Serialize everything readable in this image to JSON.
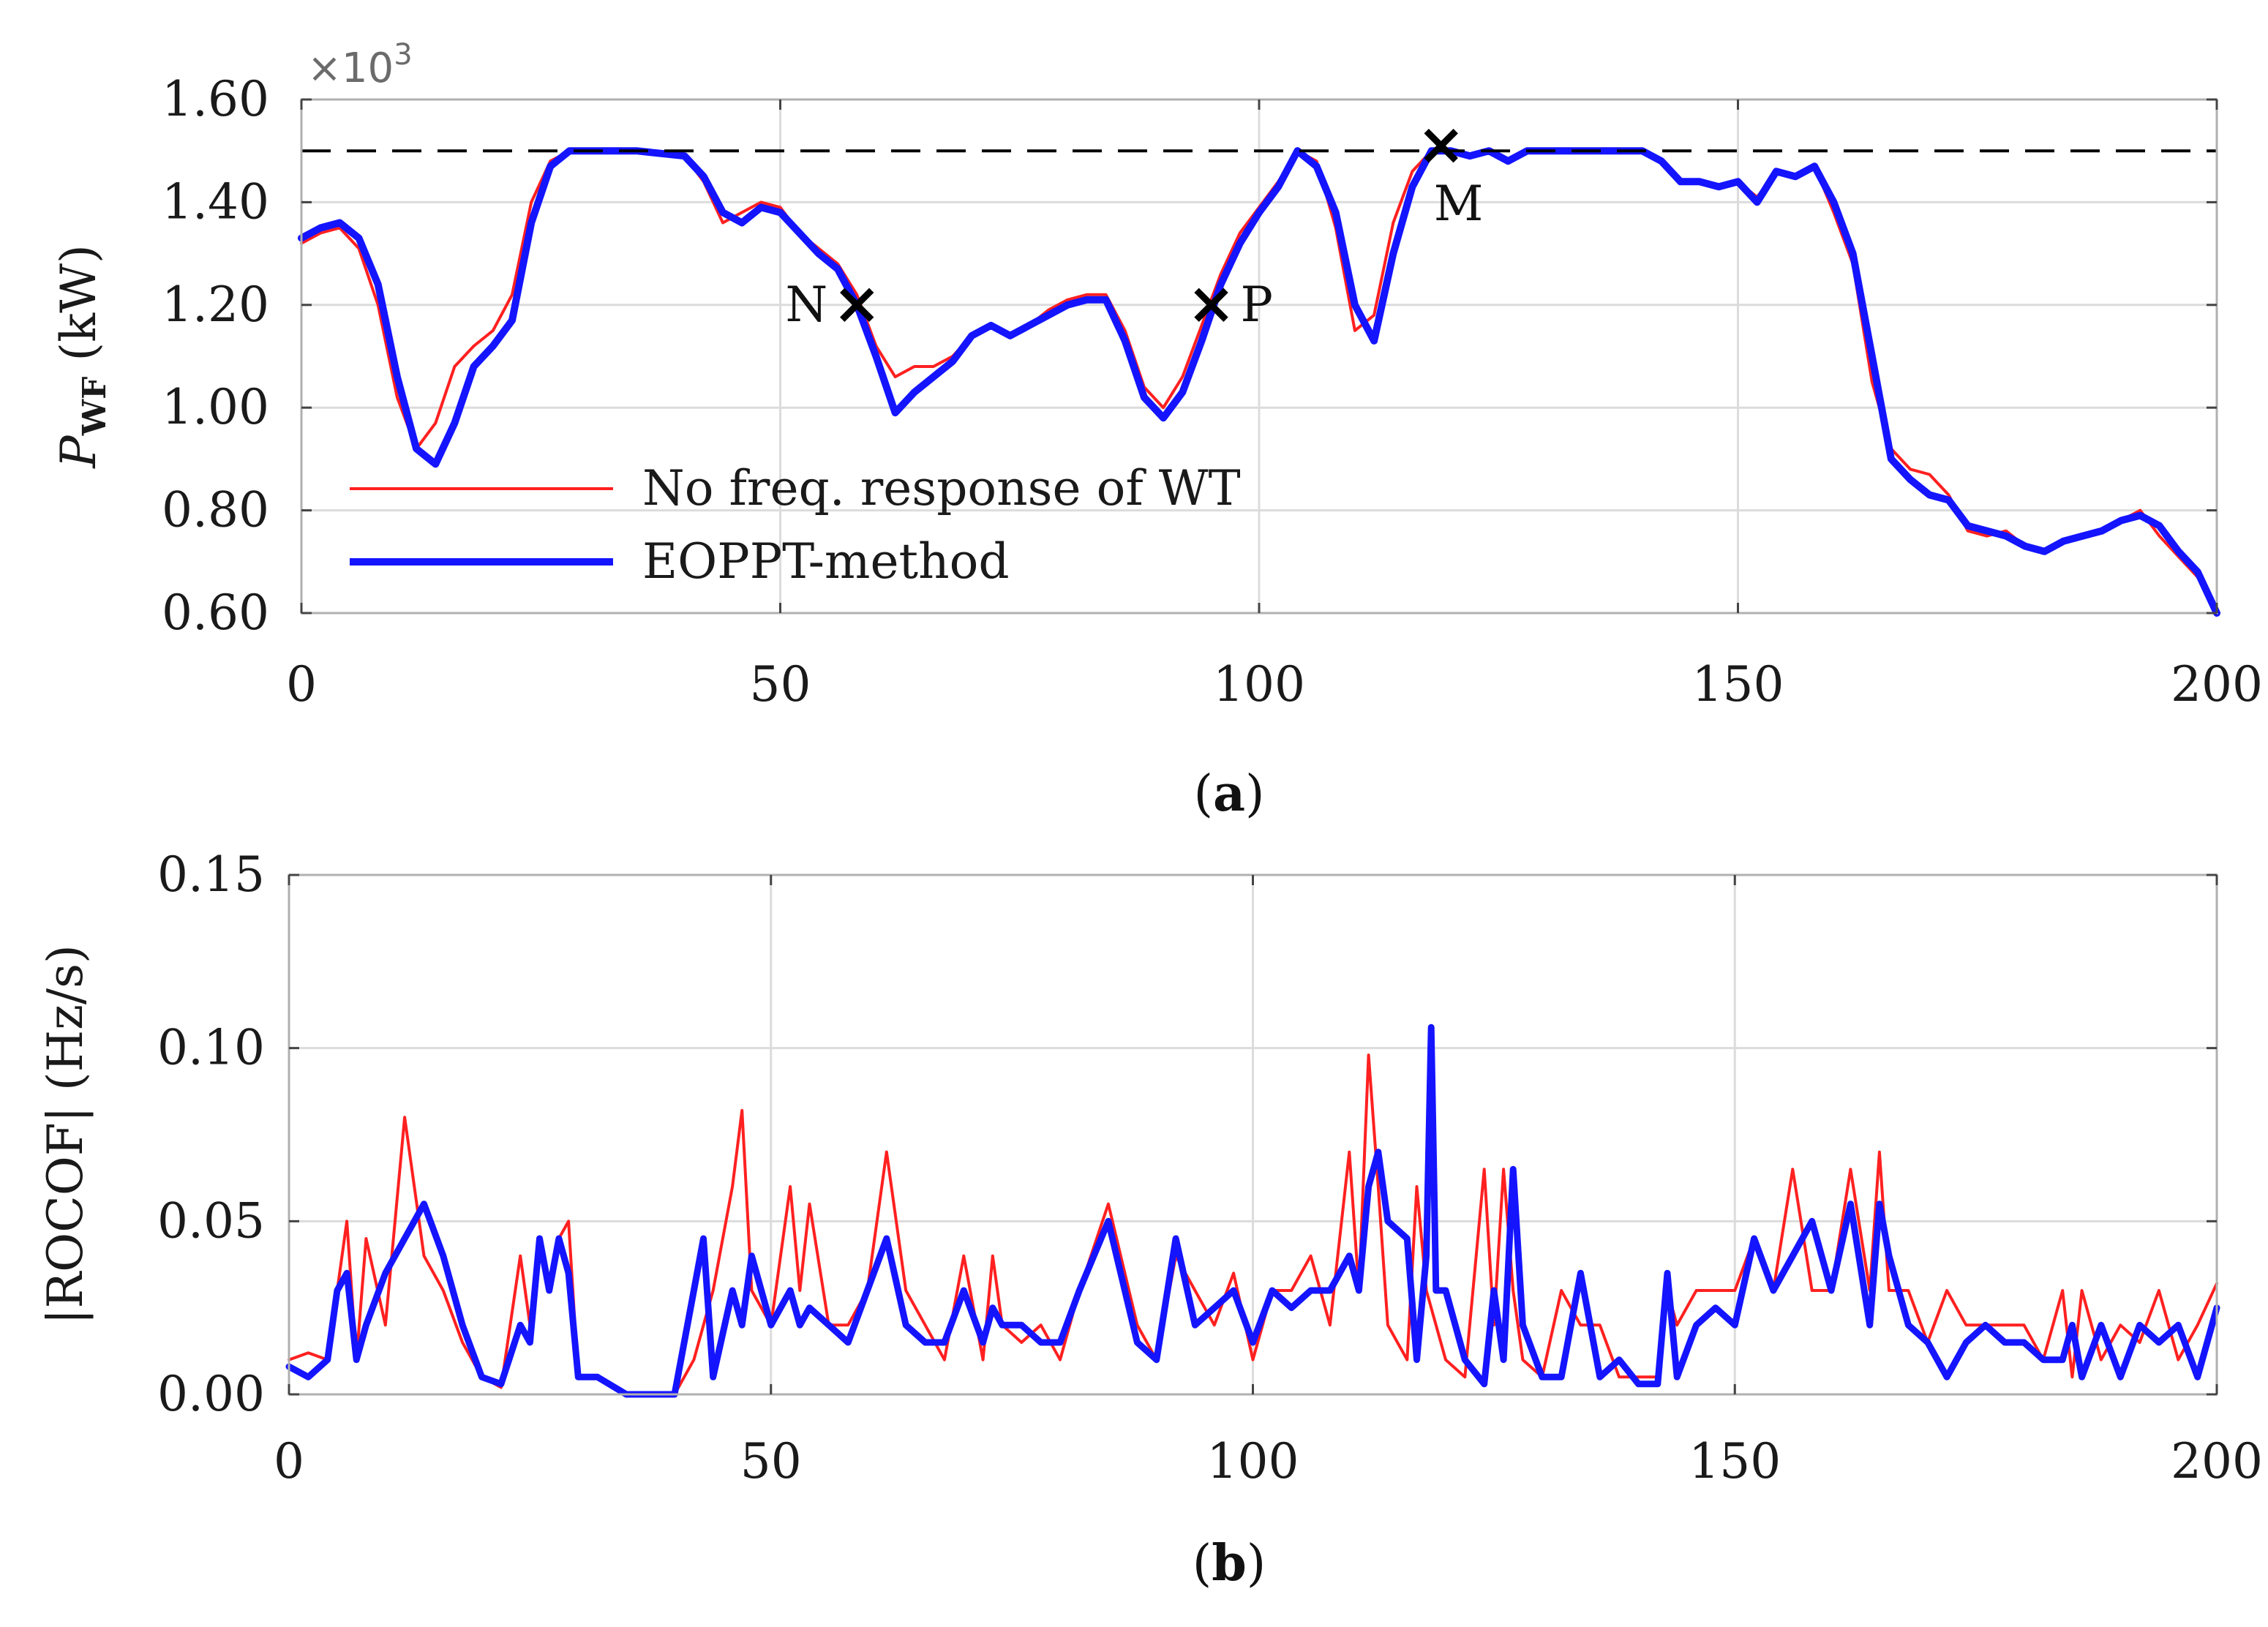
{
  "chart_data": [
    {
      "id": "a",
      "type": "line",
      "caption": "(a)",
      "ylabel_main": "P",
      "ylabel_sub": "WF",
      "ylabel_unit": "(kW)",
      "exponent_base": "×10",
      "exponent_power": "3",
      "xlim": [
        0,
        200
      ],
      "ylim": [
        0.6,
        1.6
      ],
      "x_ticks": [
        "0",
        "50",
        "100",
        "150",
        "200"
      ],
      "y_ticks": [
        "0.60",
        "0.80",
        "1.00",
        "1.20",
        "1.40",
        "1.60"
      ],
      "grid": true,
      "legend_position": "bottom-left",
      "reference_line": {
        "y": 1.5,
        "style": "dashed",
        "color": "#000000"
      },
      "annotations": [
        {
          "label": "N",
          "x": 58,
          "y": 1.2,
          "side": "left"
        },
        {
          "label": "P",
          "x": 95,
          "y": 1.2,
          "side": "right"
        },
        {
          "label": "M",
          "x": 119,
          "y": 1.51,
          "side": "below"
        }
      ],
      "series": [
        {
          "name": "No freq. response of WT",
          "color": "#ff2020",
          "width": 4,
          "x": [
            0,
            2,
            4,
            6,
            8,
            10,
            12,
            14,
            16,
            18,
            20,
            22,
            24,
            26,
            28,
            30,
            35,
            40,
            42,
            44,
            46,
            48,
            50,
            52,
            54,
            56,
            58,
            60,
            62,
            64,
            66,
            68,
            70,
            72,
            74,
            76,
            78,
            80,
            82,
            84,
            86,
            88,
            90,
            92,
            94,
            96,
            98,
            100,
            102,
            104,
            106,
            108,
            110,
            112,
            114,
            116,
            118,
            120,
            122,
            124,
            126,
            128,
            130,
            135,
            140,
            142,
            144,
            146,
            148,
            150,
            152,
            154,
            156,
            158,
            160,
            162,
            164,
            166,
            168,
            170,
            172,
            174,
            176,
            178,
            180,
            182,
            184,
            186,
            188,
            190,
            192,
            194,
            196,
            198,
            200
          ],
          "y": [
            1.32,
            1.34,
            1.35,
            1.31,
            1.2,
            1.02,
            0.92,
            0.97,
            1.08,
            1.12,
            1.15,
            1.22,
            1.4,
            1.48,
            1.5,
            1.5,
            1.5,
            1.49,
            1.44,
            1.36,
            1.38,
            1.4,
            1.39,
            1.34,
            1.31,
            1.28,
            1.22,
            1.12,
            1.06,
            1.08,
            1.08,
            1.1,
            1.14,
            1.16,
            1.14,
            1.16,
            1.19,
            1.21,
            1.22,
            1.22,
            1.15,
            1.04,
            1.0,
            1.06,
            1.16,
            1.26,
            1.34,
            1.39,
            1.44,
            1.5,
            1.48,
            1.35,
            1.15,
            1.18,
            1.36,
            1.46,
            1.5,
            1.5,
            1.49,
            1.5,
            1.48,
            1.5,
            1.5,
            1.5,
            1.5,
            1.48,
            1.44,
            1.44,
            1.43,
            1.44,
            1.41,
            1.46,
            1.45,
            1.47,
            1.38,
            1.28,
            1.05,
            0.92,
            0.88,
            0.87,
            0.83,
            0.76,
            0.75,
            0.76,
            0.73,
            0.72,
            0.74,
            0.75,
            0.76,
            0.78,
            0.8,
            0.75,
            0.71,
            0.67,
            0.6
          ]
        },
        {
          "name": "EOPPT-method",
          "color": "#1414ff",
          "width": 10,
          "x": [
            0,
            2,
            4,
            6,
            8,
            10,
            12,
            14,
            16,
            18,
            20,
            22,
            24,
            26,
            28,
            30,
            35,
            40,
            42,
            44,
            46,
            48,
            50,
            52,
            54,
            56,
            58,
            60,
            62,
            64,
            66,
            68,
            70,
            72,
            74,
            76,
            78,
            80,
            82,
            84,
            86,
            88,
            90,
            92,
            94,
            96,
            98,
            100,
            102,
            104,
            106,
            108,
            110,
            112,
            114,
            116,
            118,
            120,
            122,
            124,
            126,
            128,
            130,
            135,
            140,
            142,
            144,
            146,
            148,
            150,
            152,
            154,
            156,
            158,
            160,
            162,
            164,
            166,
            168,
            170,
            172,
            174,
            176,
            178,
            180,
            182,
            184,
            186,
            188,
            190,
            192,
            194,
            196,
            198,
            200
          ],
          "y": [
            1.33,
            1.35,
            1.36,
            1.33,
            1.24,
            1.06,
            0.92,
            0.89,
            0.97,
            1.08,
            1.12,
            1.17,
            1.36,
            1.47,
            1.5,
            1.5,
            1.5,
            1.49,
            1.45,
            1.38,
            1.36,
            1.39,
            1.38,
            1.34,
            1.3,
            1.27,
            1.2,
            1.1,
            0.99,
            1.03,
            1.06,
            1.09,
            1.14,
            1.16,
            1.14,
            1.16,
            1.18,
            1.2,
            1.21,
            1.21,
            1.13,
            1.02,
            0.98,
            1.03,
            1.13,
            1.24,
            1.32,
            1.38,
            1.43,
            1.5,
            1.47,
            1.38,
            1.2,
            1.13,
            1.3,
            1.43,
            1.5,
            1.5,
            1.49,
            1.5,
            1.48,
            1.5,
            1.5,
            1.5,
            1.5,
            1.48,
            1.44,
            1.44,
            1.43,
            1.44,
            1.4,
            1.46,
            1.45,
            1.47,
            1.4,
            1.3,
            1.1,
            0.9,
            0.86,
            0.83,
            0.82,
            0.77,
            0.76,
            0.75,
            0.73,
            0.72,
            0.74,
            0.75,
            0.76,
            0.78,
            0.79,
            0.77,
            0.72,
            0.68,
            0.6
          ]
        }
      ]
    },
    {
      "id": "b",
      "type": "line",
      "caption": "(b)",
      "ylabel": "|ROCOF| (Hz/s)",
      "xlim": [
        0,
        200
      ],
      "ylim": [
        0,
        0.15
      ],
      "x_ticks": [
        "0",
        "50",
        "100",
        "150",
        "200"
      ],
      "y_ticks": [
        "0.00",
        "0.05",
        "0.10",
        "0.15"
      ],
      "grid": true,
      "series": [
        {
          "name": "No freq. response of WT",
          "color": "#ff2020",
          "width": 4,
          "x": [
            0,
            2,
            4,
            5,
            6,
            7,
            8,
            10,
            12,
            14,
            16,
            18,
            20,
            22,
            24,
            25,
            26,
            27,
            28,
            29,
            30,
            32,
            35,
            40,
            42,
            44,
            46,
            47,
            48,
            50,
            52,
            53,
            54,
            56,
            58,
            60,
            62,
            64,
            66,
            68,
            70,
            72,
            73,
            74,
            76,
            78,
            80,
            82,
            85,
            88,
            90,
            92,
            94,
            96,
            98,
            100,
            102,
            104,
            106,
            108,
            110,
            111,
            112,
            113,
            114,
            116,
            117,
            118,
            120,
            122,
            124,
            125,
            126,
            127,
            128,
            130,
            132,
            134,
            136,
            138,
            140,
            142,
            143,
            144,
            146,
            148,
            150,
            152,
            154,
            156,
            158,
            160,
            162,
            164,
            165,
            166,
            168,
            170,
            172,
            174,
            176,
            178,
            180,
            182,
            184,
            185,
            186,
            188,
            190,
            192,
            194,
            196,
            198,
            200
          ],
          "y": [
            0.01,
            0.012,
            0.01,
            0.03,
            0.05,
            0.01,
            0.045,
            0.02,
            0.08,
            0.04,
            0.03,
            0.015,
            0.005,
            0.002,
            0.04,
            0.02,
            0.045,
            0.03,
            0.045,
            0.05,
            0.005,
            0.005,
            0.0,
            0.0,
            0.01,
            0.03,
            0.06,
            0.082,
            0.03,
            0.02,
            0.06,
            0.03,
            0.055,
            0.02,
            0.02,
            0.03,
            0.07,
            0.03,
            0.02,
            0.01,
            0.04,
            0.01,
            0.04,
            0.02,
            0.015,
            0.02,
            0.01,
            0.03,
            0.055,
            0.02,
            0.01,
            0.04,
            0.03,
            0.02,
            0.035,
            0.01,
            0.03,
            0.03,
            0.04,
            0.02,
            0.07,
            0.03,
            0.098,
            0.06,
            0.02,
            0.01,
            0.06,
            0.03,
            0.01,
            0.005,
            0.065,
            0.02,
            0.065,
            0.03,
            0.01,
            0.005,
            0.03,
            0.02,
            0.02,
            0.005,
            0.005,
            0.005,
            0.03,
            0.02,
            0.03,
            0.03,
            0.03,
            0.045,
            0.03,
            0.065,
            0.03,
            0.03,
            0.065,
            0.03,
            0.07,
            0.03,
            0.03,
            0.015,
            0.03,
            0.02,
            0.02,
            0.02,
            0.02,
            0.01,
            0.03,
            0.005,
            0.03,
            0.01,
            0.02,
            0.015,
            0.03,
            0.01,
            0.02,
            0.032
          ]
        },
        {
          "name": "EOPPT-method",
          "color": "#1414ff",
          "width": 9,
          "x": [
            0,
            2,
            4,
            5,
            6,
            7,
            8,
            10,
            12,
            14,
            16,
            18,
            20,
            22,
            24,
            25,
            26,
            27,
            28,
            29,
            30,
            32,
            35,
            40,
            42,
            43,
            44,
            46,
            47,
            48,
            50,
            52,
            53,
            54,
            56,
            58,
            60,
            62,
            64,
            66,
            68,
            70,
            72,
            73,
            74,
            76,
            78,
            80,
            82,
            85,
            88,
            90,
            92,
            94,
            96,
            98,
            100,
            102,
            104,
            106,
            108,
            110,
            111,
            112,
            113,
            114,
            116,
            117,
            118,
            118.5,
            119,
            120,
            122,
            124,
            125,
            126,
            127,
            128,
            130,
            132,
            134,
            136,
            138,
            140,
            142,
            143,
            144,
            146,
            148,
            150,
            152,
            154,
            156,
            158,
            160,
            162,
            164,
            165,
            166,
            168,
            170,
            172,
            174,
            176,
            178,
            180,
            182,
            184,
            185,
            186,
            188,
            190,
            192,
            194,
            196,
            198,
            200
          ],
          "y": [
            0.008,
            0.005,
            0.01,
            0.03,
            0.035,
            0.01,
            0.02,
            0.035,
            0.045,
            0.055,
            0.04,
            0.02,
            0.005,
            0.003,
            0.02,
            0.015,
            0.045,
            0.03,
            0.045,
            0.035,
            0.005,
            0.005,
            0.0,
            0.0,
            0.03,
            0.045,
            0.005,
            0.03,
            0.02,
            0.04,
            0.02,
            0.03,
            0.02,
            0.025,
            0.02,
            0.015,
            0.03,
            0.045,
            0.02,
            0.015,
            0.015,
            0.03,
            0.015,
            0.025,
            0.02,
            0.02,
            0.015,
            0.015,
            0.03,
            0.05,
            0.015,
            0.01,
            0.045,
            0.02,
            0.025,
            0.03,
            0.015,
            0.03,
            0.025,
            0.03,
            0.03,
            0.04,
            0.03,
            0.06,
            0.07,
            0.05,
            0.045,
            0.01,
            0.04,
            0.106,
            0.03,
            0.03,
            0.01,
            0.003,
            0.03,
            0.01,
            0.065,
            0.02,
            0.005,
            0.005,
            0.035,
            0.005,
            0.01,
            0.003,
            0.003,
            0.035,
            0.005,
            0.02,
            0.025,
            0.02,
            0.045,
            0.03,
            0.04,
            0.05,
            0.03,
            0.055,
            0.02,
            0.055,
            0.04,
            0.02,
            0.015,
            0.005,
            0.015,
            0.02,
            0.015,
            0.015,
            0.01,
            0.01,
            0.02,
            0.005,
            0.02,
            0.005,
            0.02,
            0.015,
            0.02,
            0.005,
            0.025
          ]
        }
      ]
    }
  ]
}
